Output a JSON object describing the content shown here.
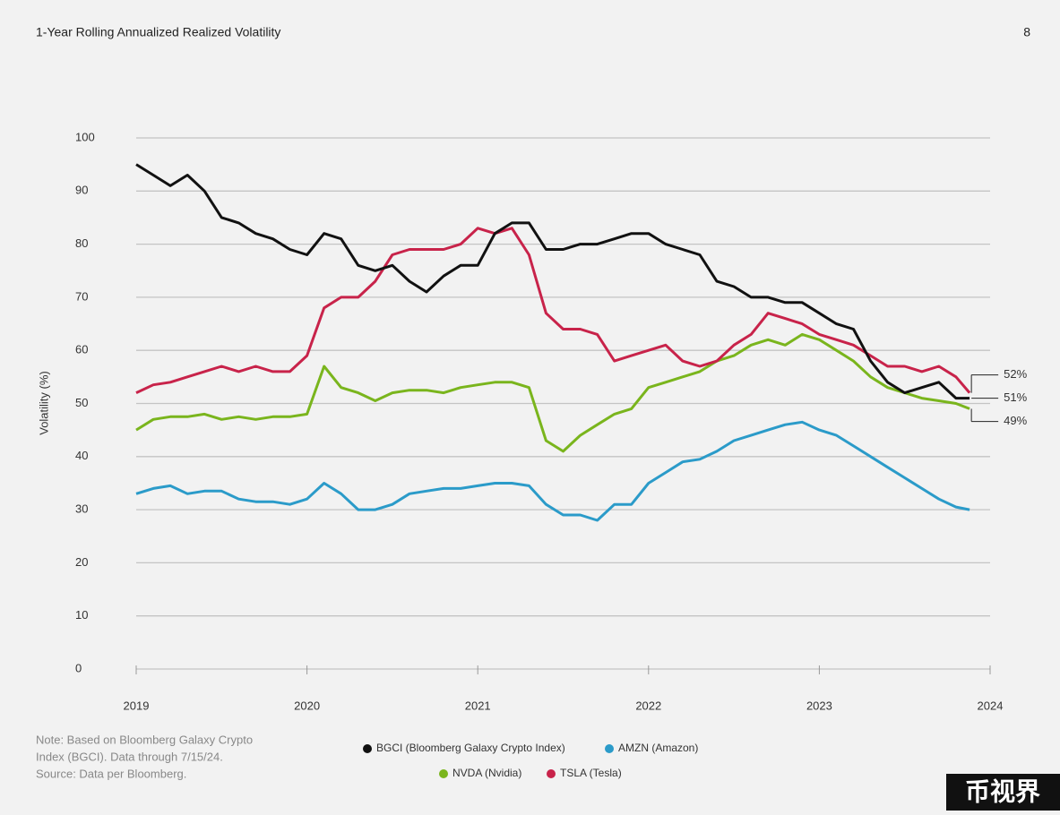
{
  "header": {
    "title": "1-Year Rolling Annualized Realized Volatility",
    "page": "8"
  },
  "chart_data": {
    "type": "line",
    "ylabel": "Volatility (%)",
    "x": [
      2019.0,
      2019.1,
      2019.2,
      2019.3,
      2019.4,
      2019.5,
      2019.6,
      2019.7,
      2019.8,
      2019.9,
      2020.0,
      2020.1,
      2020.2,
      2020.3,
      2020.4,
      2020.5,
      2020.6,
      2020.7,
      2020.8,
      2020.9,
      2021.0,
      2021.1,
      2021.2,
      2021.3,
      2021.4,
      2021.5,
      2021.6,
      2021.7,
      2021.8,
      2021.9,
      2022.0,
      2022.1,
      2022.2,
      2022.3,
      2022.4,
      2022.5,
      2022.6,
      2022.7,
      2022.8,
      2022.9,
      2023.0,
      2023.1,
      2023.2,
      2023.3,
      2023.4,
      2023.5,
      2023.6,
      2023.7,
      2023.8,
      2023.88
    ],
    "series": [
      {
        "name": "BGCI (Bloomberg Galaxy Crypto Index)",
        "color": "#111111",
        "values": [
          95,
          93,
          91,
          93,
          90,
          85,
          84,
          82,
          81,
          79,
          78,
          82,
          81,
          76,
          75,
          76,
          73,
          71,
          74,
          76,
          76,
          82,
          84,
          84,
          79,
          79,
          80,
          80,
          81,
          82,
          82,
          80,
          79,
          78,
          73,
          72,
          70,
          70,
          69,
          69,
          67,
          65,
          64,
          58,
          54,
          52,
          53,
          54,
          51,
          51
        ],
        "end_label": "51%"
      },
      {
        "name": "AMZN (Amazon)",
        "color": "#2b9bc9",
        "values": [
          33,
          34,
          34.5,
          33,
          33.5,
          33.5,
          32,
          31.5,
          31.5,
          31,
          32,
          35,
          33,
          30,
          30,
          31,
          33,
          33.5,
          34,
          34,
          34.5,
          35,
          35,
          34.5,
          31,
          29,
          29,
          28,
          31,
          31,
          35,
          37,
          39,
          39.5,
          41,
          43,
          44,
          45,
          46,
          46.5,
          45,
          44,
          42,
          40,
          38,
          36,
          34,
          32,
          30.5,
          30
        ]
      },
      {
        "name": "NVDA (Nvidia)",
        "color": "#7ab51d",
        "values": [
          45,
          47,
          47.5,
          47.5,
          48,
          47,
          47.5,
          47,
          47.5,
          47.5,
          48,
          57,
          53,
          52,
          50.5,
          52,
          52.5,
          52.5,
          52,
          53,
          53.5,
          54,
          54,
          53,
          43,
          41,
          44,
          46,
          48,
          49,
          53,
          54,
          55,
          56,
          58,
          59,
          61,
          62,
          61,
          63,
          62,
          60,
          58,
          55,
          53,
          52,
          51,
          50.5,
          50,
          49
        ],
        "end_label": "49%"
      },
      {
        "name": "TSLA (Tesla)",
        "color": "#c8234a",
        "values": [
          52,
          53.5,
          54,
          55,
          56,
          57,
          56,
          57,
          56,
          56,
          59,
          68,
          70,
          70,
          73,
          78,
          79,
          79,
          79,
          80,
          83,
          82,
          83,
          78,
          67,
          64,
          64,
          63,
          58,
          59,
          60,
          61,
          58,
          57,
          58,
          61,
          63,
          67,
          66,
          65,
          63,
          62,
          61,
          59,
          57,
          57,
          56,
          57,
          55,
          52
        ],
        "end_label": "52%"
      }
    ],
    "xlim": [
      2019,
      2024
    ],
    "xticks": [
      2019,
      2020,
      2021,
      2022,
      2023,
      2024
    ],
    "ylim": [
      0,
      100
    ],
    "yticks": [
      0,
      10,
      20,
      30,
      40,
      50,
      60,
      70,
      80,
      90,
      100
    ],
    "grid": true
  },
  "note": [
    "Note: Based on Bloomberg Galaxy Crypto",
    "Index (BGCI). Data through 7/15/24.",
    "Source: Data per Bloomberg."
  ],
  "watermark": "币视界"
}
